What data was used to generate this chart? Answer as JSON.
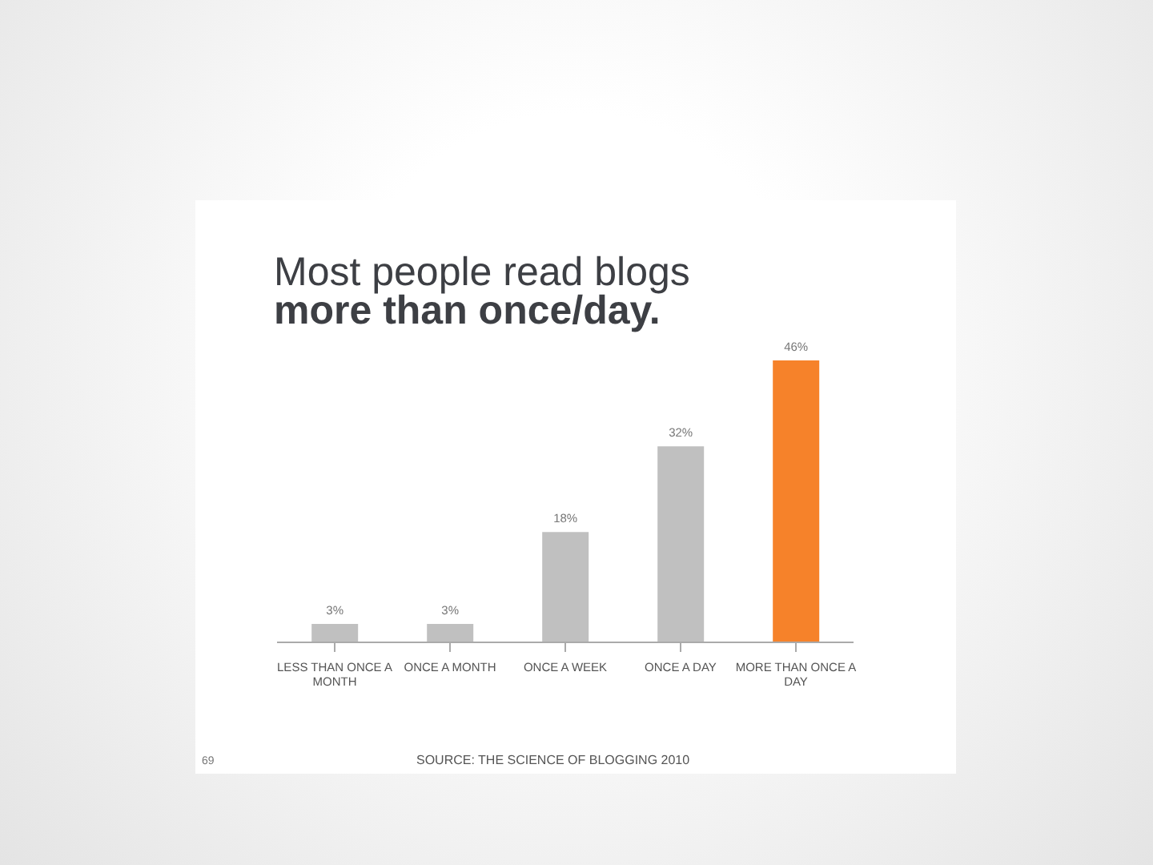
{
  "chart_data": {
    "type": "bar",
    "title": "Most people read blogs",
    "subtitle": "more than once/day.",
    "categories": [
      "LESS THAN ONCE A MONTH",
      "ONCE A MONTH",
      "ONCE A WEEK",
      "ONCE A DAY",
      "MORE THAN ONCE A DAY"
    ],
    "values": [
      3,
      3,
      18,
      32,
      46
    ],
    "colors": [
      "#c0c0c0",
      "#c0c0c0",
      "#c0c0c0",
      "#c0c0c0",
      "#f6822a"
    ],
    "value_labels": [
      "3%",
      "3%",
      "18%",
      "32%",
      "46%"
    ],
    "annotations": [
      "SOURCE: THE SCIENCE OF BLOGGING 2010",
      "69"
    ],
    "grid": false,
    "legend": false
  }
}
